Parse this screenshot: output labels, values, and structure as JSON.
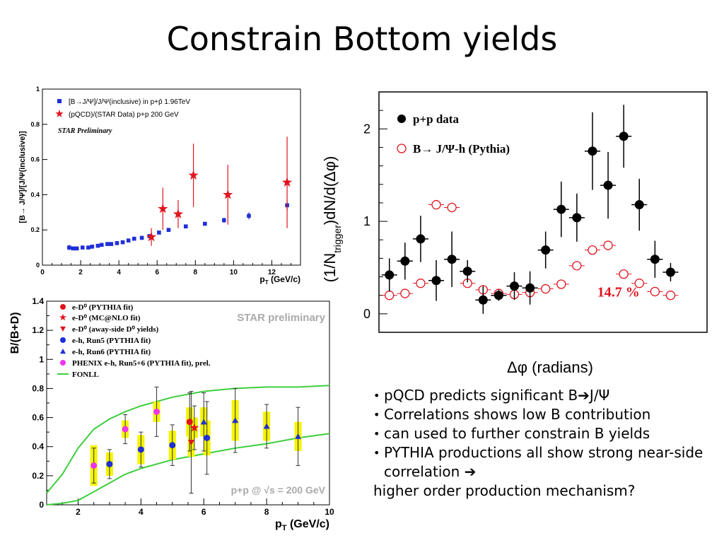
{
  "slide": {
    "title": "Constrain Bottom yields"
  },
  "bullets": [
    "pQCD predicts significant B➔J/Ψ",
    "Correlations shows low B contribution",
    "can used to further constrain B yields",
    "PYTHIA productions all show strong near-side correlation ➔"
  ],
  "bullet_tail": "higher order production mechanism?",
  "colors": {
    "blue": "#1f2fd8",
    "red": "#e0141e",
    "magenta": "#f032f0",
    "green": "#3ccf3c",
    "yellow": "#f4f400",
    "black": "#000000"
  },
  "chart_data": [
    {
      "type": "scatter",
      "title": "",
      "xlabel": "p_T (GeV/c)",
      "ylabel": "[B→ J/Ψ]/[J/Ψ(inclusive)]",
      "xlim": [
        0,
        13.5
      ],
      "ylim": [
        0,
        1
      ],
      "xticks": [
        "0",
        "2",
        "4",
        "6",
        "8",
        "10",
        "12"
      ],
      "yticks": [
        "0",
        "0.2",
        "0.4",
        "0.6",
        "0.8",
        "1"
      ],
      "annotation": "STAR Preliminary",
      "legend_position": "top-left",
      "series": [
        {
          "name": "[B→J/Ψ]/J/Ψ(inclusive) in p+p̄ 1.96TeV",
          "marker": "square",
          "color": "#1f2fd8",
          "x": [
            1.4,
            1.6,
            1.8,
            2.1,
            2.4,
            2.6,
            2.9,
            3.1,
            3.4,
            3.6,
            3.9,
            4.2,
            4.5,
            4.8,
            5.2,
            5.6,
            6.1,
            6.6,
            7.5,
            8.5,
            9.5,
            10.8,
            12.8
          ],
          "y": [
            0.1,
            0.095,
            0.095,
            0.1,
            0.1,
            0.105,
            0.11,
            0.115,
            0.12,
            0.12,
            0.125,
            0.13,
            0.14,
            0.15,
            0.155,
            0.165,
            0.185,
            0.2,
            0.22,
            0.235,
            0.255,
            0.28,
            0.34
          ],
          "err": [
            0.015,
            0.01,
            0.01,
            0.01,
            0.01,
            0.01,
            0.01,
            0.01,
            0.01,
            0.01,
            0.01,
            0.01,
            0.01,
            0.01,
            0.01,
            0.01,
            0.01,
            0.01,
            0.01,
            0.01,
            0.015,
            0.02,
            0.03
          ]
        },
        {
          "name": "(pQCD)/(STAR Data) p+p 200 GeV",
          "marker": "star",
          "color": "#e0141e",
          "x": [
            5.7,
            6.3,
            7.1,
            7.9,
            9.7,
            12.8
          ],
          "y": [
            0.16,
            0.32,
            0.29,
            0.51,
            0.4,
            0.47
          ],
          "err": [
            0.05,
            0.12,
            0.08,
            0.18,
            0.17,
            0.26
          ]
        }
      ]
    },
    {
      "type": "scatter",
      "title": "",
      "xlabel": "p_T (GeV/c)",
      "ylabel": "B/(B+D)",
      "xlim": [
        1,
        10
      ],
      "ylim": [
        0,
        1.4
      ],
      "xticks": [
        "2",
        "4",
        "6",
        "8",
        "10"
      ],
      "yticks": [
        "0",
        "0.2",
        "0.4",
        "0.6",
        "0.8",
        "1",
        "1.2",
        "1.4"
      ],
      "annotations": [
        "STAR preliminary",
        "p+p @ √s = 200 GeV"
      ],
      "legend_position": "top-left",
      "series": [
        {
          "name": "e-D⁰ (PYTHIA fit)",
          "marker": "circle",
          "color": "#e0141e",
          "x": [
            5.55
          ],
          "y": [
            0.57
          ],
          "err": [
            0.2
          ],
          "sys": [
            0.1
          ]
        },
        {
          "name": "e-D⁰ (MC@NLO fit)",
          "marker": "star",
          "color": "#e0141e",
          "x": [
            5.7
          ],
          "y": [
            0.53
          ],
          "err": [
            0.15
          ],
          "sys": [
            0.07
          ]
        },
        {
          "name": "e-D⁰ (away-side D⁰ yields)",
          "marker": "triangle-down",
          "color": "#e0141e",
          "x": [
            5.6
          ],
          "y": [
            0.43
          ],
          "err": [
            0.35
          ],
          "sys": [
            0.1
          ]
        },
        {
          "name": "e-h, Run5 (PYTHIA fit)",
          "marker": "circle",
          "color": "#1f2fd8",
          "x": [
            3.0,
            4.0,
            5.0,
            6.1
          ],
          "y": [
            0.28,
            0.38,
            0.41,
            0.46
          ],
          "err": [
            0.1,
            0.12,
            0.14,
            0.25
          ],
          "sys": [
            0.08,
            0.1,
            0.1,
            0.12
          ]
        },
        {
          "name": "e-h, Run6 (PYTHIA fit)",
          "marker": "triangle",
          "color": "#1f2fd8",
          "x": [
            6.0,
            7.0,
            8.0,
            9.0
          ],
          "y": [
            0.57,
            0.58,
            0.54,
            0.47
          ],
          "err": [
            0.2,
            0.22,
            0.15,
            0.2
          ],
          "sys": [
            0.1,
            0.14,
            0.1,
            0.1
          ]
        },
        {
          "name": "PHENIX e-h, Run5+6 (PYTHIA fit), prel.",
          "marker": "circle",
          "color": "#f032f0",
          "x": [
            2.5,
            3.5,
            4.5
          ],
          "y": [
            0.27,
            0.52,
            0.64
          ],
          "err": [
            0.12,
            0.1,
            0.17
          ],
          "sys": [
            0.14,
            0.06,
            0.07
          ]
        },
        {
          "name": "FONLL",
          "type": "band",
          "color": "#3ccf3c",
          "x": [
            1.0,
            1.5,
            2.0,
            2.5,
            3.0,
            3.5,
            4.0,
            5.0,
            6.0,
            7.0,
            8.0,
            9.0,
            10.0
          ],
          "upper": [
            0.08,
            0.21,
            0.39,
            0.52,
            0.59,
            0.64,
            0.68,
            0.74,
            0.78,
            0.8,
            0.81,
            0.81,
            0.82
          ],
          "lower": [
            0.0,
            0.01,
            0.03,
            0.09,
            0.15,
            0.21,
            0.25,
            0.31,
            0.35,
            0.39,
            0.42,
            0.46,
            0.49
          ]
        }
      ]
    },
    {
      "type": "scatter",
      "title": "",
      "xlabel": "Δφ (radians)",
      "ylabel": "(1/N_trigger)dN/d(Δφ)",
      "xlim": [
        -1.6,
        4.7
      ],
      "ylim": [
        -0.2,
        2.4
      ],
      "yticks": [
        "0",
        "1",
        "2"
      ],
      "annotation": "14.7 %",
      "legend_position": "top-left",
      "series": [
        {
          "name": "p+p data",
          "marker": "circle",
          "color": "#000000",
          "x": [
            -1.4,
            -1.1,
            -0.8,
            -0.5,
            -0.2,
            0.1,
            0.4,
            0.7,
            1.0,
            1.3,
            1.6,
            1.9,
            2.2,
            2.5,
            2.8,
            3.1,
            3.4,
            3.7,
            4.0
          ],
          "y": [
            0.42,
            0.57,
            0.81,
            0.36,
            0.59,
            0.46,
            0.15,
            0.2,
            0.3,
            0.28,
            0.69,
            1.13,
            1.04,
            1.76,
            1.39,
            1.92,
            1.18,
            0.59,
            0.45
          ],
          "err": [
            0.18,
            0.2,
            0.25,
            0.22,
            0.3,
            0.12,
            0.15,
            0.06,
            0.15,
            0.18,
            0.2,
            0.3,
            0.26,
            0.42,
            0.36,
            0.34,
            0.28,
            0.2,
            0.1
          ]
        },
        {
          "name": "B→ J/Ψ-h (Pythia)",
          "marker": "open-circle",
          "color": "#e0141e",
          "x": [
            -1.4,
            -1.1,
            -0.8,
            -0.5,
            -0.2,
            0.1,
            0.4,
            0.7,
            1.0,
            1.3,
            1.6,
            1.9,
            2.2,
            2.5,
            2.8,
            3.1,
            3.4,
            3.7,
            4.0
          ],
          "y": [
            0.2,
            0.22,
            0.33,
            1.18,
            1.15,
            0.33,
            0.26,
            0.22,
            0.21,
            0.23,
            0.27,
            0.32,
            0.52,
            0.69,
            0.74,
            0.43,
            0.33,
            0.24,
            0.2
          ],
          "err": [
            0,
            0,
            0,
            0,
            0,
            0,
            0,
            0,
            0,
            0,
            0,
            0,
            0,
            0,
            0,
            0,
            0,
            0,
            0
          ]
        }
      ]
    }
  ]
}
